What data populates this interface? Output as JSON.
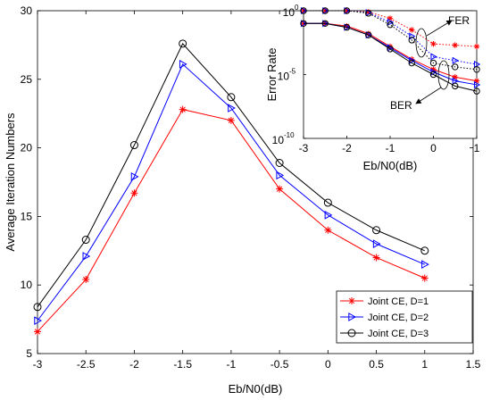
{
  "chart_data": [
    {
      "type": "line",
      "xlabel": "Eb/N0(dB)",
      "ylabel": "Average Iteration Numbers",
      "xlim": [
        -3,
        1.5
      ],
      "ylim": [
        5,
        30
      ],
      "xticks": [
        "-3",
        "-2.5",
        "-2",
        "-1.5",
        "-1",
        "-0.5",
        "0",
        "0.5",
        "1",
        "1.5"
      ],
      "yticks": [
        "5",
        "10",
        "15",
        "20",
        "25",
        "30"
      ],
      "x": [
        -3,
        -2.5,
        -2,
        -1.5,
        -1,
        -0.5,
        0,
        0.5,
        1
      ],
      "legend_position": "bottom-right",
      "grid": false,
      "series": [
        {
          "name": "Joint CE, D=1",
          "color": "#ff0000",
          "marker": "asterisk",
          "values": [
            6.6,
            10.4,
            16.7,
            22.8,
            22.0,
            17.0,
            14.0,
            12.0,
            10.5
          ]
        },
        {
          "name": "Joint CE, D=2",
          "color": "#0000ff",
          "marker": "triangle-right",
          "values": [
            7.4,
            12.1,
            17.9,
            26.1,
            22.9,
            18.0,
            15.1,
            13.0,
            11.5
          ]
        },
        {
          "name": "Joint CE, D=3",
          "color": "#000000",
          "marker": "circle",
          "values": [
            8.4,
            13.3,
            20.2,
            27.6,
            23.7,
            18.9,
            16.0,
            14.0,
            12.5
          ]
        }
      ]
    },
    {
      "type": "line",
      "xlabel": "Eb/N0(dB)",
      "ylabel": "Error Rate",
      "xlim": [
        -3,
        1
      ],
      "ylim_log10": [
        -10,
        0
      ],
      "log_scale_y": true,
      "xticks": [
        "-3",
        "-2",
        "-1",
        "0",
        "1"
      ],
      "yticks": [
        {
          "base": "10",
          "exp": "0",
          "v": 0
        },
        {
          "base": "10",
          "exp": "-5",
          "v": -5
        },
        {
          "base": "10",
          "exp": "-10",
          "v": -10
        }
      ],
      "x": [
        -3,
        -2.5,
        -2,
        -1.5,
        -1,
        -0.5,
        0,
        0.5,
        1
      ],
      "annotations": {
        "fer": "FER",
        "ber": "BER"
      },
      "series": [
        {
          "color": "#ff0000",
          "marker": "asterisk",
          "style": "dotted",
          "log10_values": [
            0,
            0,
            0,
            -0.1,
            -0.6,
            -1.5,
            -2.6,
            -2.7,
            -2.8
          ]
        },
        {
          "color": "#0000ff",
          "marker": "triangle-right",
          "style": "dotted",
          "log10_values": [
            0,
            0,
            0,
            -0.15,
            -0.9,
            -2.0,
            -3.6,
            -3.9,
            -4.2
          ]
        },
        {
          "color": "#000000",
          "marker": "circle",
          "style": "dotted",
          "log10_values": [
            0,
            0,
            0,
            -0.2,
            -1.1,
            -2.3,
            -4.1,
            -4.4,
            -4.6
          ]
        },
        {
          "color": "#ff0000",
          "marker": "asterisk",
          "style": "solid",
          "log10_values": [
            -1.0,
            -1.0,
            -1.2,
            -1.8,
            -2.8,
            -3.8,
            -4.6,
            -5.2,
            -5.5
          ]
        },
        {
          "color": "#0000ff",
          "marker": "triangle-right",
          "style": "solid",
          "log10_values": [
            -1.0,
            -1.0,
            -1.3,
            -1.9,
            -2.9,
            -3.9,
            -4.8,
            -5.5,
            -5.8
          ]
        },
        {
          "color": "#000000",
          "marker": "circle",
          "style": "solid",
          "log10_values": [
            -1.0,
            -1.0,
            -1.3,
            -1.9,
            -3.0,
            -4.1,
            -5.0,
            -5.9,
            -6.3
          ]
        }
      ]
    }
  ]
}
